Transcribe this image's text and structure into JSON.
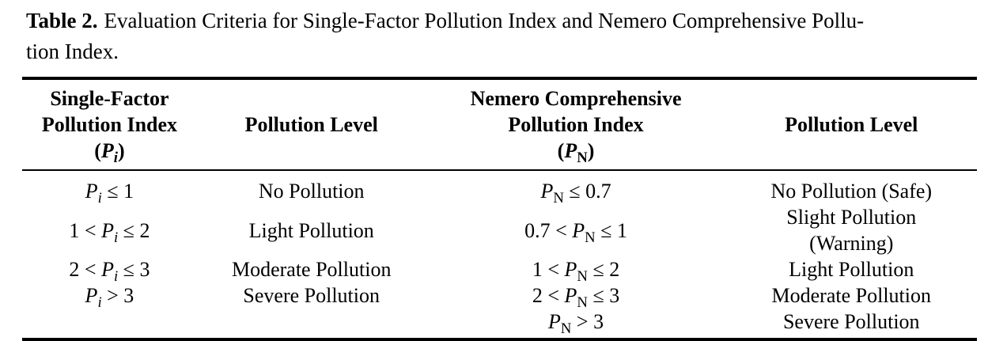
{
  "caption": {
    "label": "Table 2.",
    "text": "Evaluation Criteria for Single-Factor Pollution Index and Nemero Comprehensive Pollu-\ntion Index."
  },
  "table": {
    "headers": [
      "Single-Factor\nPollution Index\n(P_i)",
      "Pollution Level",
      "Nemero Comprehensive\nPollution Index\n(P_N)",
      "Pollution Level"
    ],
    "rows": [
      [
        "P_i ≤ 1",
        "No Pollution",
        "P_N ≤ 0.7",
        "No Pollution (Safe)"
      ],
      [
        "1 < P_i ≤ 2",
        "Light Pollution",
        "0.7 < P_N ≤ 1",
        "Slight Pollution\n(Warning)"
      ],
      [
        "2 < P_i ≤ 3",
        "Moderate Pollution",
        "1 < P_N ≤ 2",
        "Light Pollution"
      ],
      [
        "P_i > 3",
        "Severe Pollution",
        "2 < P_N ≤ 3",
        "Moderate Pollution"
      ],
      [
        "",
        "",
        "P_N > 3",
        "Severe Pollution"
      ]
    ],
    "colors": {
      "text": "#000000",
      "rule": "#000000",
      "background": "#ffffff"
    }
  }
}
